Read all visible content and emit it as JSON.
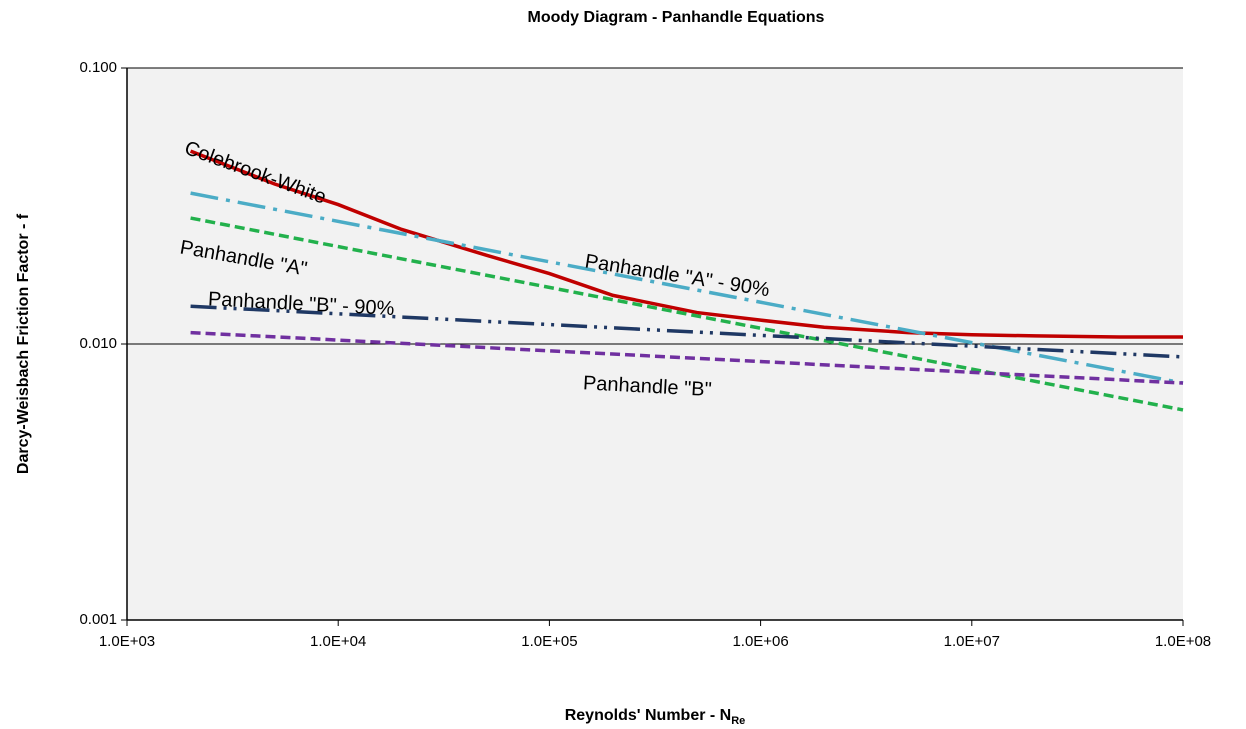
{
  "chart_data": {
    "type": "line",
    "title": "Moody Diagram - Panhandle Equations",
    "x_label": {
      "text": "Reynolds' Number - N",
      "subscript": "Re"
    },
    "y_label": "Darcy-Weisbach Friction Factor - f",
    "log_x": true,
    "log_y": true,
    "grid": true,
    "xlim": [
      1000,
      100000000
    ],
    "ylim": [
      0.001,
      0.1
    ],
    "xticks": [
      {
        "value": 1000,
        "label": "1.0E+03"
      },
      {
        "value": 10000,
        "label": "1.0E+04"
      },
      {
        "value": 100000,
        "label": "1.0E+05"
      },
      {
        "value": 1000000,
        "label": "1.0E+06"
      },
      {
        "value": 10000000,
        "label": "1.0E+07"
      },
      {
        "value": 100000000,
        "label": "1.0E+08"
      }
    ],
    "yticks": [
      {
        "value": 0.001,
        "label": "0.001"
      },
      {
        "value": 0.01,
        "label": "0.010"
      },
      {
        "value": 0.1,
        "label": "0.100"
      }
    ],
    "series": [
      {
        "name": "Colebrook-White",
        "color": "#c00000",
        "x": [
          2000,
          5000,
          10000,
          20000,
          50000,
          100000,
          200000,
          500000,
          1000000,
          2000000,
          5000000,
          10000000,
          20000000,
          50000000,
          100000000
        ],
        "values": [
          0.05,
          0.038,
          0.032,
          0.026,
          0.021,
          0.018,
          0.015,
          0.013,
          0.0122,
          0.0115,
          0.011,
          0.0108,
          0.0107,
          0.0106,
          0.0106
        ]
      },
      {
        "name": "Panhandle \"A\" - 90%",
        "color": "#4bacc6",
        "x": [
          2000,
          100000000
        ],
        "values": [
          0.0352,
          0.00722
        ]
      },
      {
        "name": "Panhandle \"A\"",
        "color": "#22b14c",
        "x": [
          2000,
          100000000
        ],
        "values": [
          0.0286,
          0.00577
        ]
      },
      {
        "name": "Panhandle \"B\" - 90%",
        "color": "#1f3864",
        "x": [
          2000,
          100000000
        ],
        "values": [
          0.0137,
          0.00898
        ]
      },
      {
        "name": "Panhandle \"B\"",
        "color": "#7030a0",
        "x": [
          2000,
          100000000
        ],
        "values": [
          0.011,
          0.00722
        ]
      }
    ]
  }
}
